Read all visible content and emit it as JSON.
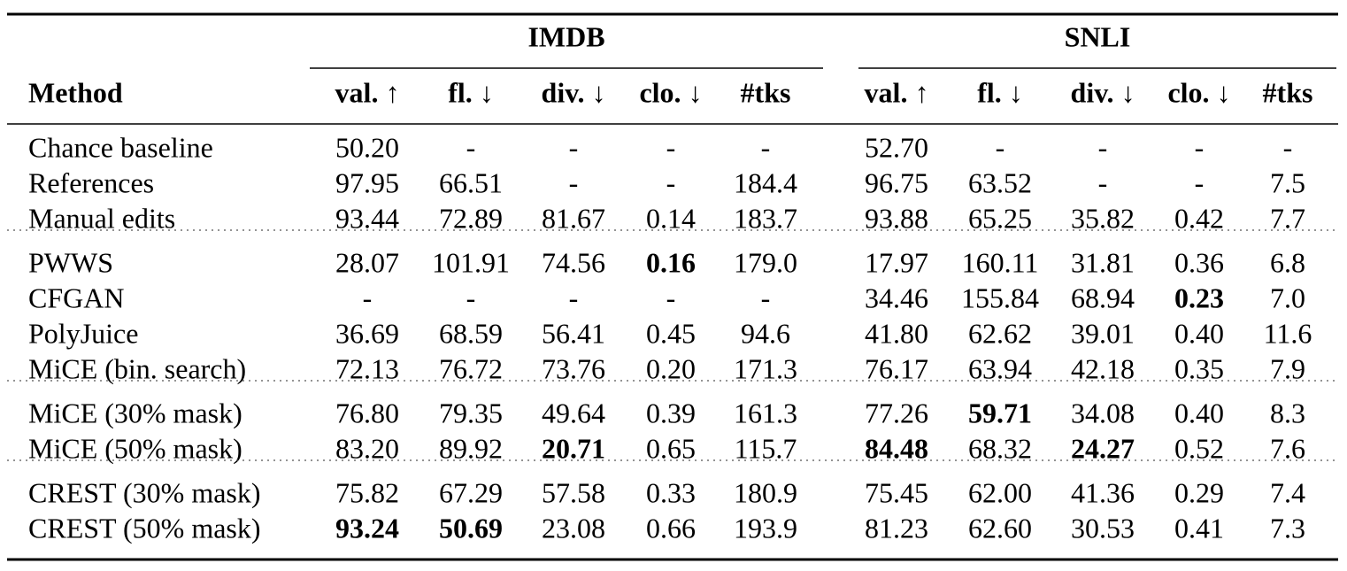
{
  "table": {
    "method_header": "Method",
    "datasets": [
      {
        "name": "IMDB",
        "columns": [
          "val. ↑",
          "fl. ↓",
          "div. ↓",
          "clo. ↓",
          "#tks"
        ]
      },
      {
        "name": "SNLI",
        "columns": [
          "val. ↑",
          "fl. ↓",
          "div. ↓",
          "clo. ↓",
          "#tks"
        ]
      }
    ],
    "groups": [
      [
        {
          "label": "Chance baseline",
          "cells": [
            "50.20",
            "-",
            "-",
            "-",
            "-",
            "52.70",
            "-",
            "-",
            "-",
            "-"
          ],
          "bold": []
        },
        {
          "label": "References",
          "cells": [
            "97.95",
            "66.51",
            "-",
            "-",
            "184.4",
            "96.75",
            "63.52",
            "-",
            "-",
            "7.5"
          ],
          "bold": []
        },
        {
          "label": "Manual edits",
          "cells": [
            "93.44",
            "72.89",
            "81.67",
            "0.14",
            "183.7",
            "93.88",
            "65.25",
            "35.82",
            "0.42",
            "7.7"
          ],
          "bold": []
        }
      ],
      [
        {
          "label": "PWWS",
          "cells": [
            "28.07",
            "101.91",
            "74.56",
            "0.16",
            "179.0",
            "17.97",
            "160.11",
            "31.81",
            "0.36",
            "6.8"
          ],
          "bold": [
            3
          ]
        },
        {
          "label": "CFGAN",
          "cells": [
            "-",
            "-",
            "-",
            "-",
            "-",
            "34.46",
            "155.84",
            "68.94",
            "0.23",
            "7.0"
          ],
          "bold": [
            8
          ]
        },
        {
          "label": "PolyJuice",
          "cells": [
            "36.69",
            "68.59",
            "56.41",
            "0.45",
            "94.6",
            "41.80",
            "62.62",
            "39.01",
            "0.40",
            "11.6"
          ],
          "bold": []
        },
        {
          "label": "MiCE (bin. search)",
          "cells": [
            "72.13",
            "76.72",
            "73.76",
            "0.20",
            "171.3",
            "76.17",
            "63.94",
            "42.18",
            "0.35",
            "7.9"
          ],
          "bold": []
        }
      ],
      [
        {
          "label": "MiCE (30% mask)",
          "cells": [
            "76.80",
            "79.35",
            "49.64",
            "0.39",
            "161.3",
            "77.26",
            "59.71",
            "34.08",
            "0.40",
            "8.3"
          ],
          "bold": [
            6
          ]
        },
        {
          "label": "MiCE (50% mask)",
          "cells": [
            "83.20",
            "89.92",
            "20.71",
            "0.65",
            "115.7",
            "84.48",
            "68.32",
            "24.27",
            "0.52",
            "7.6"
          ],
          "bold": [
            2,
            5,
            7
          ]
        }
      ],
      [
        {
          "label": "CREST (30% mask)",
          "cells": [
            "75.82",
            "67.29",
            "57.58",
            "0.33",
            "180.9",
            "75.45",
            "62.00",
            "41.36",
            "0.29",
            "7.4"
          ],
          "bold": []
        },
        {
          "label": "CREST (50% mask)",
          "cells": [
            "93.24",
            "50.69",
            "23.08",
            "0.66",
            "193.9",
            "81.23",
            "62.60",
            "30.53",
            "0.41",
            "7.3"
          ],
          "bold": [
            0,
            1
          ]
        }
      ]
    ]
  }
}
